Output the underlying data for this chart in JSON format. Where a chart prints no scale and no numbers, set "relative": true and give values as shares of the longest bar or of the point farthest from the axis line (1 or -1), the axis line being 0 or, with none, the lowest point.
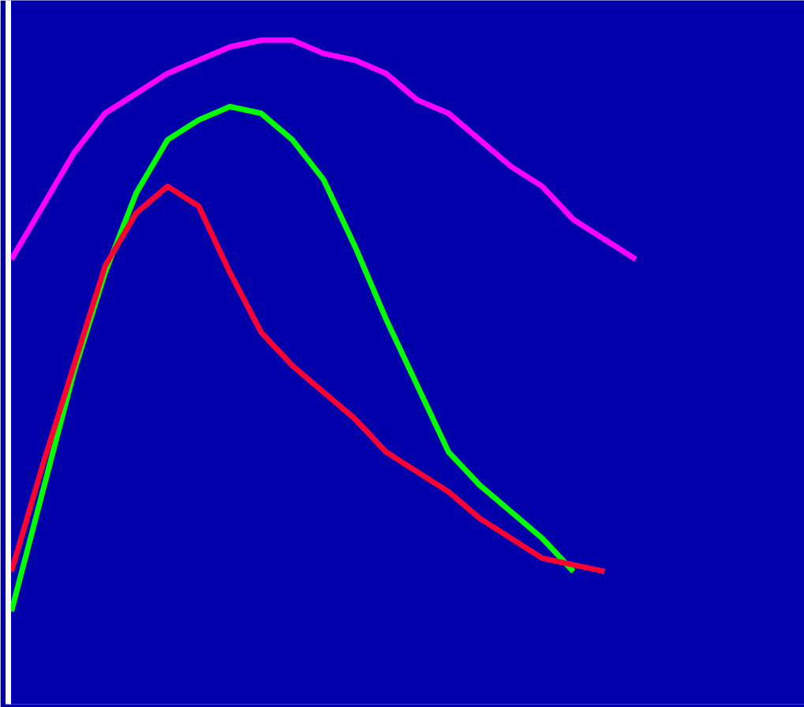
{
  "chart_data": {
    "type": "line",
    "relative": true,
    "line_style": "solid",
    "marker": "none",
    "categories": [
      null,
      null,
      null,
      null,
      null,
      null,
      null,
      null,
      null,
      null,
      null,
      null,
      null,
      null,
      null,
      null,
      null,
      null,
      null,
      null,
      null
    ],
    "series": [
      {
        "color": "#ff00ff",
        "values": [
          0.67,
          0.75,
          0.83,
          0.89,
          0.92,
          0.95,
          0.97,
          0.99,
          1.0,
          1.0,
          0.98,
          0.97,
          0.95,
          0.91,
          0.89,
          0.85,
          0.81,
          0.78,
          0.73,
          0.7,
          0.67
        ]
      },
      {
        "color": "#00ff00",
        "values": [
          0.14,
          0.32,
          0.5,
          0.65,
          0.77,
          0.85,
          0.88,
          0.9,
          0.89,
          0.85,
          0.79,
          0.69,
          0.58,
          0.48,
          0.38,
          0.33,
          0.29,
          0.25,
          0.2,
          null,
          null
        ]
      },
      {
        "color": "#ff0033",
        "values": [
          0.2,
          0.36,
          0.51,
          0.66,
          0.74,
          0.78,
          0.75,
          0.65,
          0.56,
          0.51,
          0.47,
          0.43,
          0.38,
          0.35,
          0.32,
          0.28,
          0.25,
          0.22,
          0.21,
          0.2,
          null
        ]
      }
    ]
  }
}
